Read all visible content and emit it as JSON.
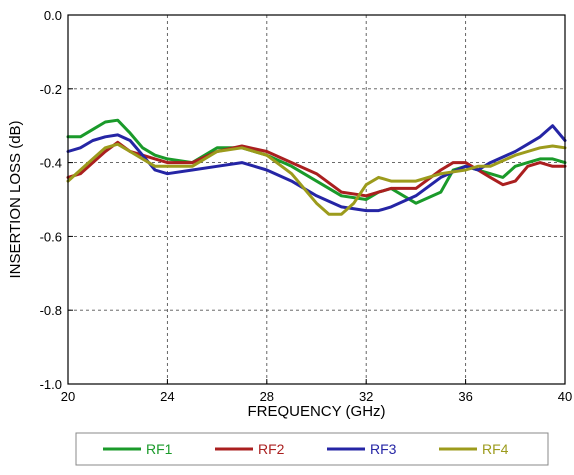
{
  "chart_data": {
    "type": "line",
    "xlabel": "FREQUENCY (GHz)",
    "ylabel": "INSERTION LOSS (dB)",
    "xlim": [
      20,
      40
    ],
    "ylim": [
      -1.0,
      0.0
    ],
    "x_ticks": [
      20,
      24,
      28,
      32,
      36,
      40
    ],
    "y_ticks": [
      0.0,
      -0.2,
      -0.4,
      -0.6,
      -0.8,
      -1.0
    ],
    "x_tick_labels": [
      "20",
      "24",
      "28",
      "32",
      "36",
      "40"
    ],
    "y_tick_labels": [
      "0.0",
      "-0.2",
      "-0.4",
      "-0.6",
      "-0.8",
      "-1.0"
    ],
    "grid": true,
    "legend_position": "bottom",
    "series": [
      {
        "name": "RF1",
        "color": "#1a9a2a",
        "x": [
          20,
          20.5,
          21,
          21.5,
          22,
          22.5,
          23,
          23.5,
          24,
          25,
          26,
          27,
          28,
          29,
          30,
          31,
          32,
          32.5,
          33,
          34,
          35,
          35.5,
          36,
          36.5,
          37,
          37.5,
          38,
          38.5,
          39,
          39.5,
          40
        ],
        "y": [
          -0.33,
          -0.33,
          -0.31,
          -0.29,
          -0.285,
          -0.32,
          -0.36,
          -0.38,
          -0.39,
          -0.4,
          -0.36,
          -0.36,
          -0.38,
          -0.41,
          -0.45,
          -0.49,
          -0.5,
          -0.48,
          -0.47,
          -0.51,
          -0.48,
          -0.42,
          -0.41,
          -0.42,
          -0.43,
          -0.44,
          -0.41,
          -0.4,
          -0.39,
          -0.39,
          -0.4
        ]
      },
      {
        "name": "RF2",
        "color": "#aa1f1f",
        "x": [
          20,
          20.5,
          21,
          21.5,
          22,
          22.5,
          23,
          23.5,
          24,
          25,
          26,
          27,
          28,
          29,
          30,
          31,
          32,
          33,
          34,
          35,
          35.5,
          36,
          36.5,
          37,
          37.5,
          38,
          38.5,
          39,
          39.5,
          40
        ],
        "y": [
          -0.44,
          -0.43,
          -0.4,
          -0.37,
          -0.345,
          -0.37,
          -0.38,
          -0.39,
          -0.4,
          -0.4,
          -0.37,
          -0.355,
          -0.37,
          -0.4,
          -0.43,
          -0.48,
          -0.49,
          -0.47,
          -0.47,
          -0.42,
          -0.4,
          -0.4,
          -0.42,
          -0.44,
          -0.46,
          -0.45,
          -0.41,
          -0.4,
          -0.41,
          -0.41
        ]
      },
      {
        "name": "RF3",
        "color": "#2525a5",
        "x": [
          20,
          20.5,
          21,
          21.5,
          22,
          22.5,
          23,
          23.5,
          24,
          25,
          26,
          27,
          28,
          29,
          30,
          31,
          32,
          32.5,
          33,
          34,
          35,
          36,
          36.5,
          37,
          38,
          38.5,
          39,
          39.5,
          40
        ],
        "y": [
          -0.37,
          -0.36,
          -0.34,
          -0.33,
          -0.325,
          -0.34,
          -0.38,
          -0.42,
          -0.43,
          -0.42,
          -0.41,
          -0.4,
          -0.42,
          -0.45,
          -0.49,
          -0.52,
          -0.53,
          -0.53,
          -0.52,
          -0.49,
          -0.44,
          -0.41,
          -0.42,
          -0.4,
          -0.37,
          -0.35,
          -0.33,
          -0.3,
          -0.34
        ]
      },
      {
        "name": "RF4",
        "color": "#9c9b1c",
        "x": [
          20,
          20.5,
          21,
          21.5,
          22,
          22.5,
          23,
          23.5,
          24,
          25,
          26,
          27,
          28,
          29,
          30,
          30.5,
          31,
          31.5,
          32,
          32.5,
          33,
          34,
          35,
          36,
          36.5,
          37,
          38,
          38.5,
          39,
          39.5,
          40
        ],
        "y": [
          -0.45,
          -0.42,
          -0.39,
          -0.36,
          -0.35,
          -0.37,
          -0.39,
          -0.41,
          -0.41,
          -0.41,
          -0.37,
          -0.36,
          -0.38,
          -0.43,
          -0.51,
          -0.54,
          -0.54,
          -0.51,
          -0.46,
          -0.44,
          -0.45,
          -0.45,
          -0.43,
          -0.42,
          -0.41,
          -0.41,
          -0.38,
          -0.37,
          -0.36,
          -0.355,
          -0.36
        ]
      }
    ]
  }
}
